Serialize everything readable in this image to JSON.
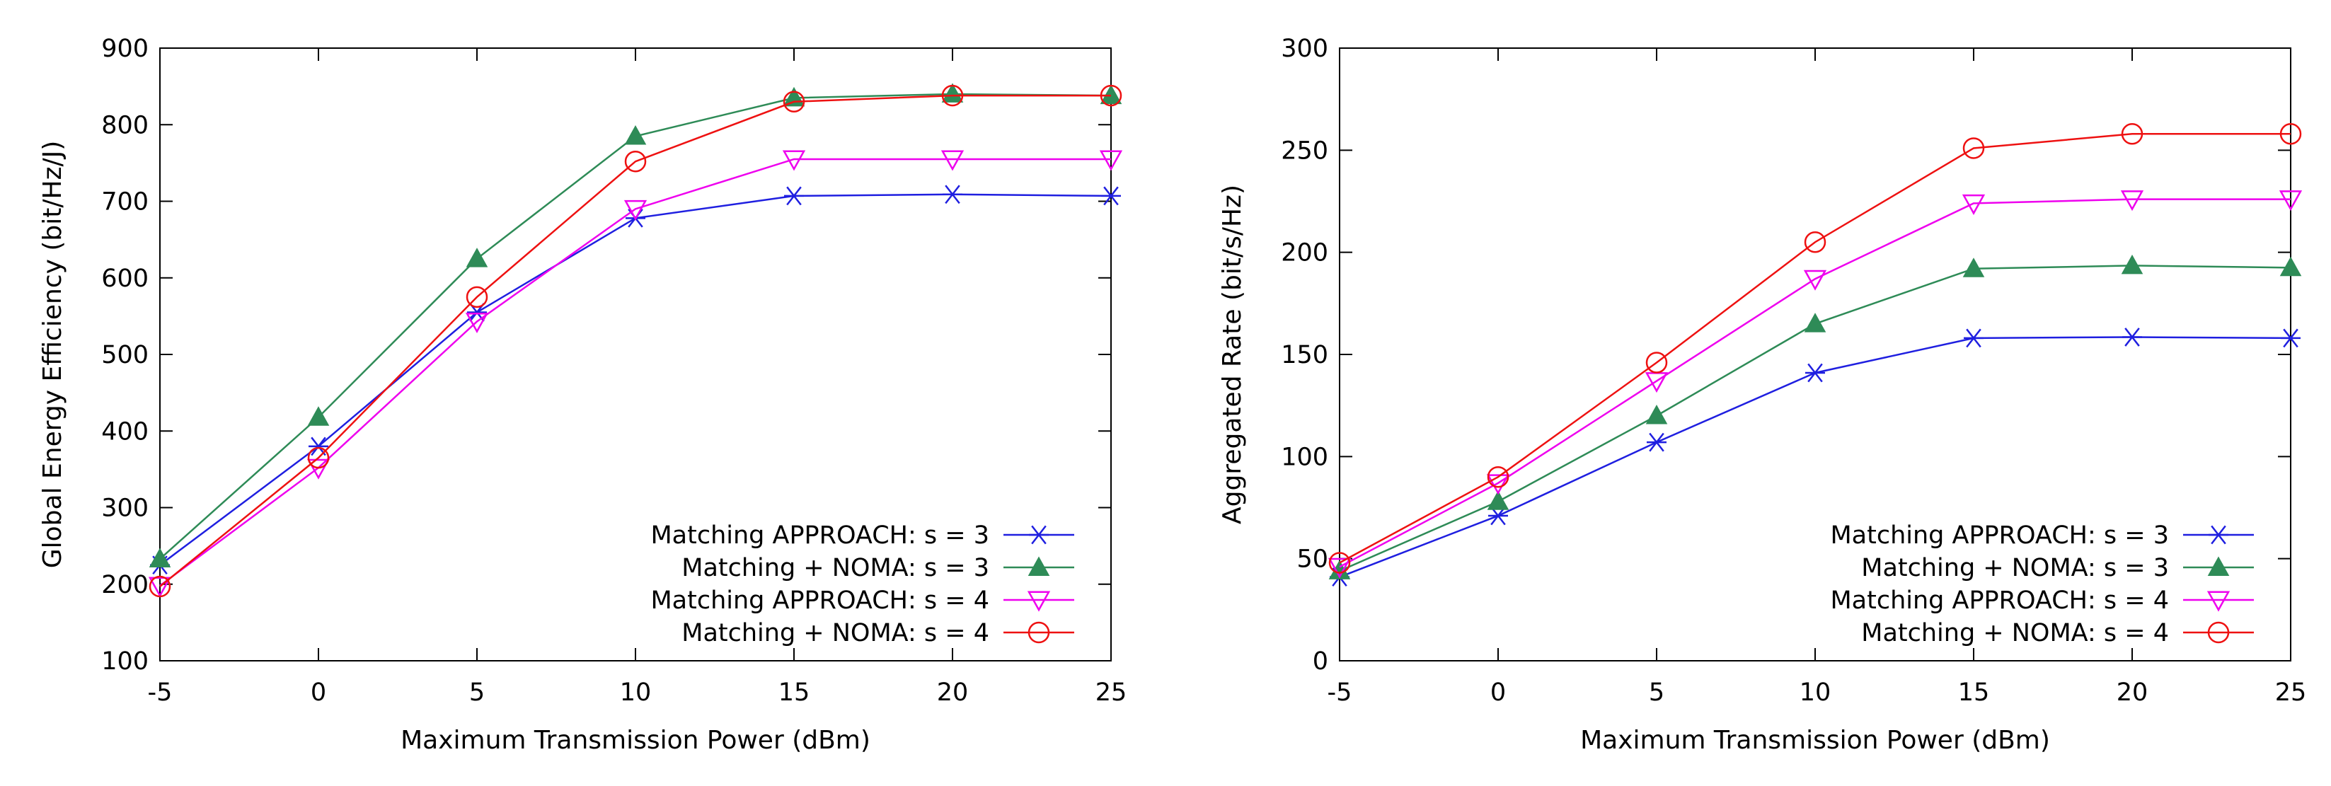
{
  "chart_data": [
    {
      "type": "line",
      "title": "",
      "xlabel": "Maximum Transmission Power (dBm)",
      "ylabel": "Global Energy Efficiency (bit/Hz/J)",
      "xlim": [
        -5,
        25
      ],
      "ylim": [
        100,
        900
      ],
      "x_ticks": [
        -5,
        0,
        5,
        10,
        15,
        20,
        25
      ],
      "y_ticks": [
        100,
        200,
        300,
        400,
        500,
        600,
        700,
        800,
        900
      ],
      "x": [
        -5,
        0,
        5,
        10,
        15,
        20,
        25
      ],
      "legend_position": "bottom-right",
      "grid": false,
      "series": [
        {
          "name": "Matching APPROACH: s = 3",
          "color": "#1f1fe0",
          "marker": "asterisk",
          "values": [
            225,
            380,
            555,
            678,
            707,
            709,
            707
          ]
        },
        {
          "name": "Matching + NOMA: s = 3",
          "color": "#2e8b57",
          "marker": "filled-triangle",
          "values": [
            233,
            418,
            625,
            785,
            835,
            840,
            838
          ]
        },
        {
          "name": "Matching APPROACH: s = 4",
          "color": "#ee00ee",
          "marker": "open-triangle-down",
          "values": [
            198,
            352,
            543,
            690,
            755,
            755,
            755
          ]
        },
        {
          "name": "Matching + NOMA: s = 4",
          "color": "#ee1111",
          "marker": "open-circle",
          "values": [
            197,
            365,
            575,
            752,
            830,
            838,
            838
          ]
        }
      ]
    },
    {
      "type": "line",
      "title": "",
      "xlabel": "Maximum Transmission Power (dBm)",
      "ylabel": "Aggregated Rate (bit/s/Hz)",
      "xlim": [
        -5,
        25
      ],
      "ylim": [
        0,
        300
      ],
      "x_ticks": [
        -5,
        0,
        5,
        10,
        15,
        20,
        25
      ],
      "y_ticks": [
        0,
        50,
        100,
        150,
        200,
        250,
        300
      ],
      "x": [
        -5,
        0,
        5,
        10,
        15,
        20,
        25
      ],
      "legend_position": "bottom-right",
      "grid": false,
      "series": [
        {
          "name": "Matching APPROACH: s = 3",
          "color": "#1f1fe0",
          "marker": "asterisk",
          "values": [
            41,
            71,
            107,
            141,
            158,
            158.5,
            158
          ]
        },
        {
          "name": "Matching + NOMA: s = 3",
          "color": "#2e8b57",
          "marker": "filled-triangle",
          "values": [
            44,
            78,
            120,
            165,
            192,
            193.5,
            192.5
          ]
        },
        {
          "name": "Matching APPROACH: s = 4",
          "color": "#ee00ee",
          "marker": "open-triangle-down",
          "values": [
            46,
            87,
            137,
            187,
            224,
            226,
            226
          ]
        },
        {
          "name": "Matching + NOMA: s = 4",
          "color": "#ee1111",
          "marker": "open-circle",
          "values": [
            48,
            90,
            146,
            205,
            251,
            258,
            258
          ]
        }
      ]
    }
  ]
}
